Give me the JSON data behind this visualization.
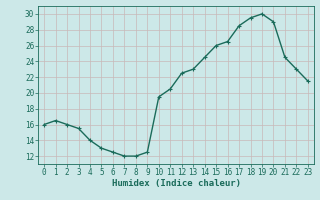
{
  "x": [
    0,
    1,
    2,
    3,
    4,
    5,
    6,
    7,
    8,
    9,
    10,
    11,
    12,
    13,
    14,
    15,
    16,
    17,
    18,
    19,
    20,
    21,
    22,
    23
  ],
  "y": [
    16,
    16.5,
    16,
    15.5,
    14,
    13,
    12.5,
    12,
    12,
    12.5,
    19.5,
    20.5,
    22.5,
    23,
    24.5,
    26,
    26.5,
    28.5,
    29.5,
    30,
    29,
    24.5,
    23,
    21.5
  ],
  "line_color": "#1a6b5a",
  "marker": "+",
  "marker_size": 3,
  "bg_color": "#cce8e8",
  "grid_color": "#b0d0d0",
  "xlabel": "Humidex (Indice chaleur)",
  "xlim": [
    -0.5,
    23.5
  ],
  "ylim": [
    11,
    31
  ],
  "yticks": [
    12,
    14,
    16,
    18,
    20,
    22,
    24,
    26,
    28,
    30
  ],
  "xticks": [
    0,
    1,
    2,
    3,
    4,
    5,
    6,
    7,
    8,
    9,
    10,
    11,
    12,
    13,
    14,
    15,
    16,
    17,
    18,
    19,
    20,
    21,
    22,
    23
  ],
  "tick_fontsize": 5.5,
  "xlabel_fontsize": 6.5,
  "linewidth": 1.0
}
